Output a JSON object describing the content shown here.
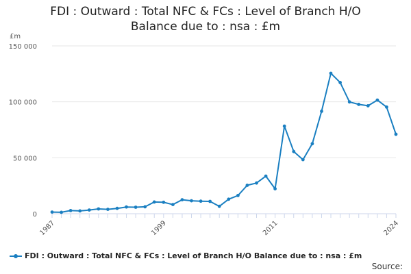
{
  "chart_data": {
    "type": "line",
    "title_lines": [
      "FDI : Outward : Total NFC & FCs : Level of Branch H/O",
      "Balance due to : nsa : £m"
    ],
    "unit_label": "£m",
    "ylim": [
      0,
      150000
    ],
    "yticks": [
      0,
      50000,
      100000,
      150000
    ],
    "ytick_labels": [
      "0",
      "50 000",
      "100 000",
      "150 000"
    ],
    "xlim": [
      1987,
      2024
    ],
    "xticks": [
      1987,
      1999,
      2011,
      2024
    ],
    "xtick_labels": [
      "1987",
      "1999",
      "2011",
      "2024"
    ],
    "grid": true,
    "legend_position": "bottom",
    "series": [
      {
        "name": "FDI : Outward : Total NFC & FCs : Level of Branch H/O Balance due to : nsa : £m",
        "color": "#1a7fc1",
        "points": [
          [
            1987,
            1500
          ],
          [
            1988,
            1300
          ],
          [
            1989,
            2800
          ],
          [
            1990,
            2500
          ],
          [
            1991,
            3300
          ],
          [
            1992,
            4300
          ],
          [
            1993,
            3900
          ],
          [
            1994,
            4800
          ],
          [
            1995,
            6000
          ],
          [
            1996,
            5800
          ],
          [
            1997,
            6200
          ],
          [
            1998,
            10500
          ],
          [
            1999,
            10200
          ],
          [
            2000,
            8200
          ],
          [
            2001,
            12500
          ],
          [
            2002,
            11600
          ],
          [
            2003,
            11200
          ],
          [
            2004,
            11000
          ],
          [
            2005,
            6600
          ],
          [
            2006,
            13000
          ],
          [
            2007,
            16300
          ],
          [
            2008,
            25400
          ],
          [
            2009,
            27400
          ],
          [
            2010,
            33600
          ],
          [
            2011,
            22300
          ],
          [
            2012,
            78300
          ],
          [
            2013,
            55600
          ],
          [
            2014,
            48300
          ],
          [
            2015,
            62600
          ],
          [
            2016,
            91600
          ],
          [
            2017,
            125500
          ],
          [
            2018,
            117300
          ],
          [
            2019,
            99900
          ],
          [
            2020,
            97700
          ],
          [
            2021,
            96500
          ],
          [
            2022,
            101600
          ],
          [
            2023,
            95300
          ],
          [
            2024,
            71000
          ]
        ]
      }
    ]
  },
  "legend_label": "FDI : Outward : Total NFC & FCs : Level of Branch H/O Balance due to : nsa : £m",
  "source_label": "Source:"
}
